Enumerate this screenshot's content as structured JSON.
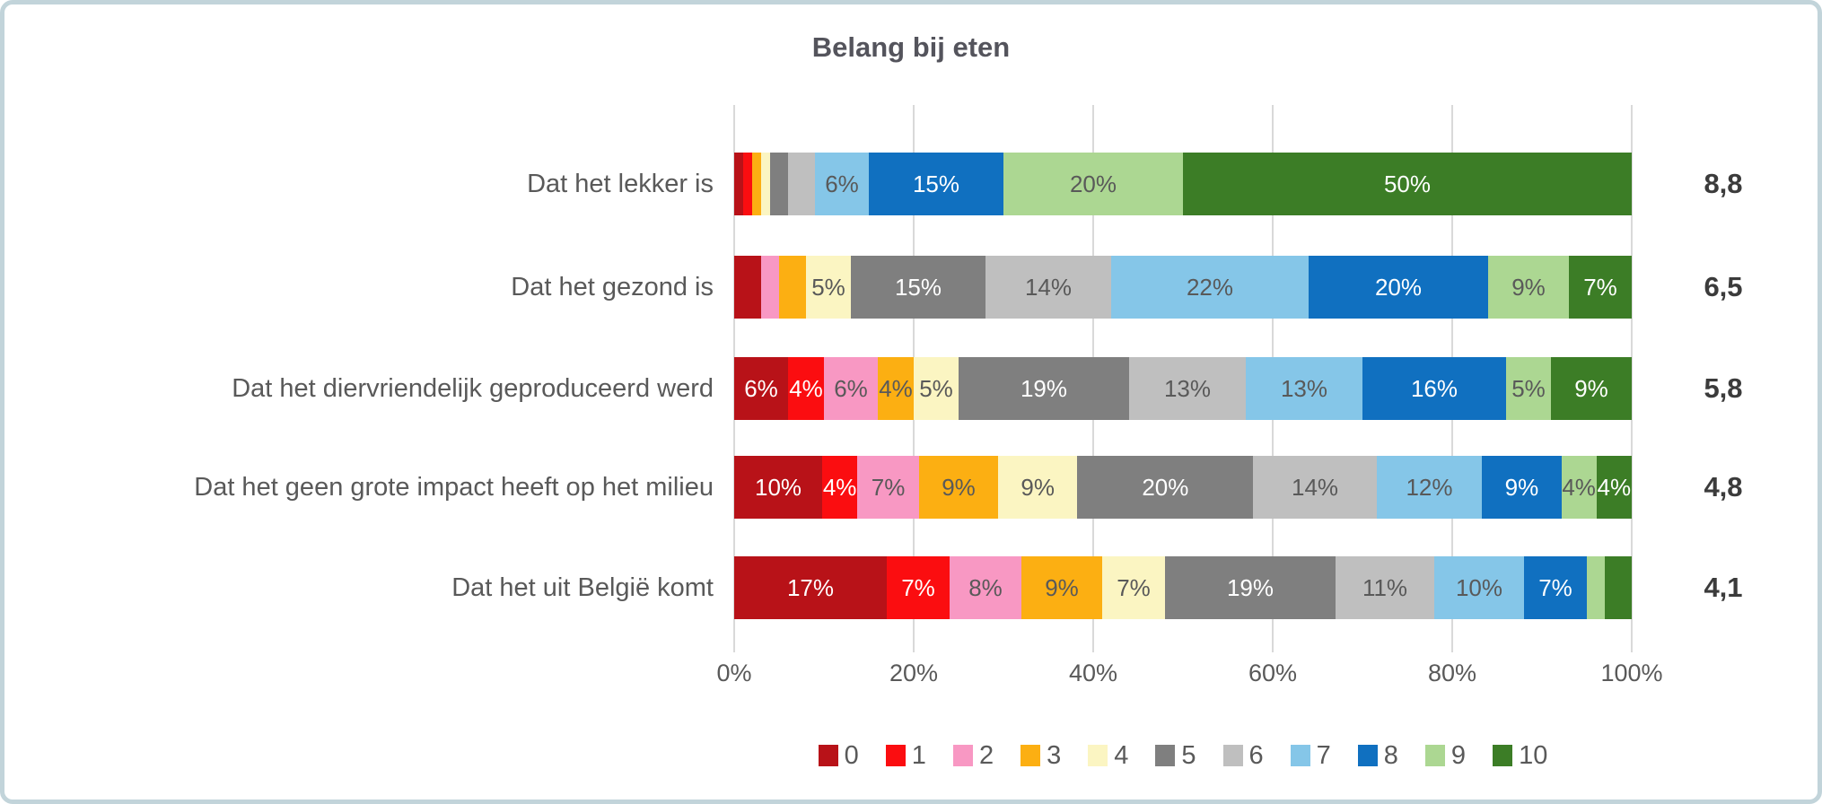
{
  "title": "Belang bij eten",
  "chart_data": {
    "type": "bar",
    "variant": "horizontal-stacked-100",
    "unit": "%",
    "title": "Belang bij eten",
    "grid": true,
    "gridline_color": "#d9d9d9",
    "label_min_value": 4,
    "x_axis": {
      "min": 0,
      "max": 100,
      "step": 20,
      "ticks": [
        "0%",
        "20%",
        "40%",
        "60%",
        "80%",
        "100%"
      ]
    },
    "legend_position": "bottom",
    "legend": [
      {
        "label": "0",
        "color": "#b81218",
        "text_color": "#ffffff"
      },
      {
        "label": "1",
        "color": "#fb0d10",
        "text_color": "#ffffff"
      },
      {
        "label": "2",
        "color": "#f898c3",
        "text_color": "#595959"
      },
      {
        "label": "3",
        "color": "#fcaf12",
        "text_color": "#595959"
      },
      {
        "label": "4",
        "color": "#fbf5c2",
        "text_color": "#595959"
      },
      {
        "label": "5",
        "color": "#7f7f7f",
        "text_color": "#ffffff"
      },
      {
        "label": "6",
        "color": "#bfbfbf",
        "text_color": "#595959"
      },
      {
        "label": "7",
        "color": "#85c6e8",
        "text_color": "#595959"
      },
      {
        "label": "8",
        "color": "#1070c0",
        "text_color": "#ffffff"
      },
      {
        "label": "9",
        "color": "#acd792",
        "text_color": "#595959"
      },
      {
        "label": "10",
        "color": "#3c7d26",
        "text_color": "#ffffff"
      }
    ],
    "rows": [
      {
        "category": "Dat het lekker is",
        "mean": "8,8",
        "values": [
          1,
          1,
          0,
          1,
          1,
          2,
          3,
          6,
          15,
          20,
          50
        ]
      },
      {
        "category": "Dat het gezond is",
        "mean": "6,5",
        "values": [
          3,
          0,
          2,
          3,
          5,
          15,
          14,
          22,
          20,
          9,
          7
        ]
      },
      {
        "category": "Dat het diervriendelijk geproduceerd werd",
        "mean": "5,8",
        "values": [
          6,
          4,
          6,
          4,
          5,
          19,
          13,
          13,
          16,
          5,
          9
        ]
      },
      {
        "category": "Dat het geen grote impact heeft op het milieu",
        "mean": "4,8",
        "values": [
          10,
          4,
          7,
          9,
          9,
          20,
          14,
          12,
          9,
          4,
          4
        ]
      },
      {
        "category": "Dat het  uit België komt",
        "mean": "4,1",
        "values": [
          17,
          7,
          8,
          9,
          7,
          19,
          11,
          10,
          7,
          2,
          3
        ]
      }
    ]
  }
}
